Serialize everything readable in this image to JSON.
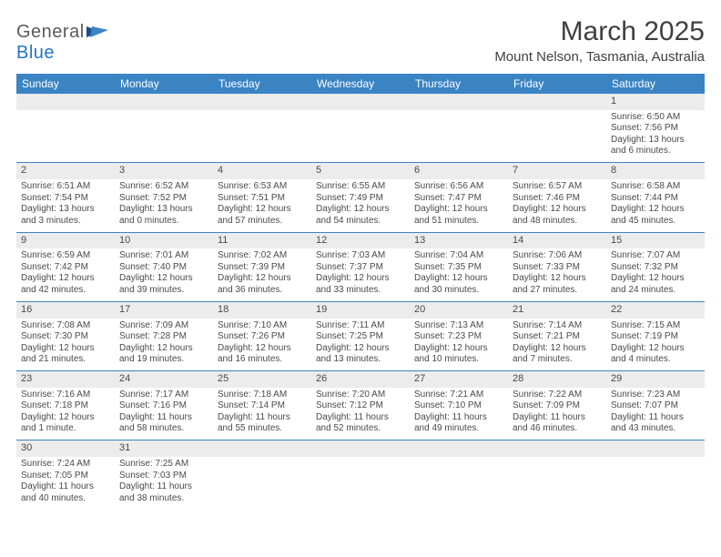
{
  "logo": {
    "text1": "General",
    "text2": "Blue"
  },
  "title": "March 2025",
  "location": "Mount Nelson, Tasmania, Australia",
  "colors": {
    "header_bg": "#3b84c4",
    "header_text": "#ffffff",
    "daynum_bg": "#ececec",
    "row_divider": "#3b84c4",
    "body_text": "#4a4a4a",
    "logo_gray": "#5a5a5a",
    "logo_blue": "#2874c7"
  },
  "typography": {
    "title_fontsize": 30,
    "location_fontsize": 15,
    "dayheader_fontsize": 12,
    "cell_fontsize": 10
  },
  "day_headers": [
    "Sunday",
    "Monday",
    "Tuesday",
    "Wednesday",
    "Thursday",
    "Friday",
    "Saturday"
  ],
  "weeks": [
    [
      null,
      null,
      null,
      null,
      null,
      null,
      {
        "n": "1",
        "sunrise": "Sunrise: 6:50 AM",
        "sunset": "Sunset: 7:56 PM",
        "daylight": "Daylight: 13 hours and 6 minutes."
      }
    ],
    [
      {
        "n": "2",
        "sunrise": "Sunrise: 6:51 AM",
        "sunset": "Sunset: 7:54 PM",
        "daylight": "Daylight: 13 hours and 3 minutes."
      },
      {
        "n": "3",
        "sunrise": "Sunrise: 6:52 AM",
        "sunset": "Sunset: 7:52 PM",
        "daylight": "Daylight: 13 hours and 0 minutes."
      },
      {
        "n": "4",
        "sunrise": "Sunrise: 6:53 AM",
        "sunset": "Sunset: 7:51 PM",
        "daylight": "Daylight: 12 hours and 57 minutes."
      },
      {
        "n": "5",
        "sunrise": "Sunrise: 6:55 AM",
        "sunset": "Sunset: 7:49 PM",
        "daylight": "Daylight: 12 hours and 54 minutes."
      },
      {
        "n": "6",
        "sunrise": "Sunrise: 6:56 AM",
        "sunset": "Sunset: 7:47 PM",
        "daylight": "Daylight: 12 hours and 51 minutes."
      },
      {
        "n": "7",
        "sunrise": "Sunrise: 6:57 AM",
        "sunset": "Sunset: 7:46 PM",
        "daylight": "Daylight: 12 hours and 48 minutes."
      },
      {
        "n": "8",
        "sunrise": "Sunrise: 6:58 AM",
        "sunset": "Sunset: 7:44 PM",
        "daylight": "Daylight: 12 hours and 45 minutes."
      }
    ],
    [
      {
        "n": "9",
        "sunrise": "Sunrise: 6:59 AM",
        "sunset": "Sunset: 7:42 PM",
        "daylight": "Daylight: 12 hours and 42 minutes."
      },
      {
        "n": "10",
        "sunrise": "Sunrise: 7:01 AM",
        "sunset": "Sunset: 7:40 PM",
        "daylight": "Daylight: 12 hours and 39 minutes."
      },
      {
        "n": "11",
        "sunrise": "Sunrise: 7:02 AM",
        "sunset": "Sunset: 7:39 PM",
        "daylight": "Daylight: 12 hours and 36 minutes."
      },
      {
        "n": "12",
        "sunrise": "Sunrise: 7:03 AM",
        "sunset": "Sunset: 7:37 PM",
        "daylight": "Daylight: 12 hours and 33 minutes."
      },
      {
        "n": "13",
        "sunrise": "Sunrise: 7:04 AM",
        "sunset": "Sunset: 7:35 PM",
        "daylight": "Daylight: 12 hours and 30 minutes."
      },
      {
        "n": "14",
        "sunrise": "Sunrise: 7:06 AM",
        "sunset": "Sunset: 7:33 PM",
        "daylight": "Daylight: 12 hours and 27 minutes."
      },
      {
        "n": "15",
        "sunrise": "Sunrise: 7:07 AM",
        "sunset": "Sunset: 7:32 PM",
        "daylight": "Daylight: 12 hours and 24 minutes."
      }
    ],
    [
      {
        "n": "16",
        "sunrise": "Sunrise: 7:08 AM",
        "sunset": "Sunset: 7:30 PM",
        "daylight": "Daylight: 12 hours and 21 minutes."
      },
      {
        "n": "17",
        "sunrise": "Sunrise: 7:09 AM",
        "sunset": "Sunset: 7:28 PM",
        "daylight": "Daylight: 12 hours and 19 minutes."
      },
      {
        "n": "18",
        "sunrise": "Sunrise: 7:10 AM",
        "sunset": "Sunset: 7:26 PM",
        "daylight": "Daylight: 12 hours and 16 minutes."
      },
      {
        "n": "19",
        "sunrise": "Sunrise: 7:11 AM",
        "sunset": "Sunset: 7:25 PM",
        "daylight": "Daylight: 12 hours and 13 minutes."
      },
      {
        "n": "20",
        "sunrise": "Sunrise: 7:13 AM",
        "sunset": "Sunset: 7:23 PM",
        "daylight": "Daylight: 12 hours and 10 minutes."
      },
      {
        "n": "21",
        "sunrise": "Sunrise: 7:14 AM",
        "sunset": "Sunset: 7:21 PM",
        "daylight": "Daylight: 12 hours and 7 minutes."
      },
      {
        "n": "22",
        "sunrise": "Sunrise: 7:15 AM",
        "sunset": "Sunset: 7:19 PM",
        "daylight": "Daylight: 12 hours and 4 minutes."
      }
    ],
    [
      {
        "n": "23",
        "sunrise": "Sunrise: 7:16 AM",
        "sunset": "Sunset: 7:18 PM",
        "daylight": "Daylight: 12 hours and 1 minute."
      },
      {
        "n": "24",
        "sunrise": "Sunrise: 7:17 AM",
        "sunset": "Sunset: 7:16 PM",
        "daylight": "Daylight: 11 hours and 58 minutes."
      },
      {
        "n": "25",
        "sunrise": "Sunrise: 7:18 AM",
        "sunset": "Sunset: 7:14 PM",
        "daylight": "Daylight: 11 hours and 55 minutes."
      },
      {
        "n": "26",
        "sunrise": "Sunrise: 7:20 AM",
        "sunset": "Sunset: 7:12 PM",
        "daylight": "Daylight: 11 hours and 52 minutes."
      },
      {
        "n": "27",
        "sunrise": "Sunrise: 7:21 AM",
        "sunset": "Sunset: 7:10 PM",
        "daylight": "Daylight: 11 hours and 49 minutes."
      },
      {
        "n": "28",
        "sunrise": "Sunrise: 7:22 AM",
        "sunset": "Sunset: 7:09 PM",
        "daylight": "Daylight: 11 hours and 46 minutes."
      },
      {
        "n": "29",
        "sunrise": "Sunrise: 7:23 AM",
        "sunset": "Sunset: 7:07 PM",
        "daylight": "Daylight: 11 hours and 43 minutes."
      }
    ],
    [
      {
        "n": "30",
        "sunrise": "Sunrise: 7:24 AM",
        "sunset": "Sunset: 7:05 PM",
        "daylight": "Daylight: 11 hours and 40 minutes."
      },
      {
        "n": "31",
        "sunrise": "Sunrise: 7:25 AM",
        "sunset": "Sunset: 7:03 PM",
        "daylight": "Daylight: 11 hours and 38 minutes."
      },
      null,
      null,
      null,
      null,
      null
    ]
  ]
}
